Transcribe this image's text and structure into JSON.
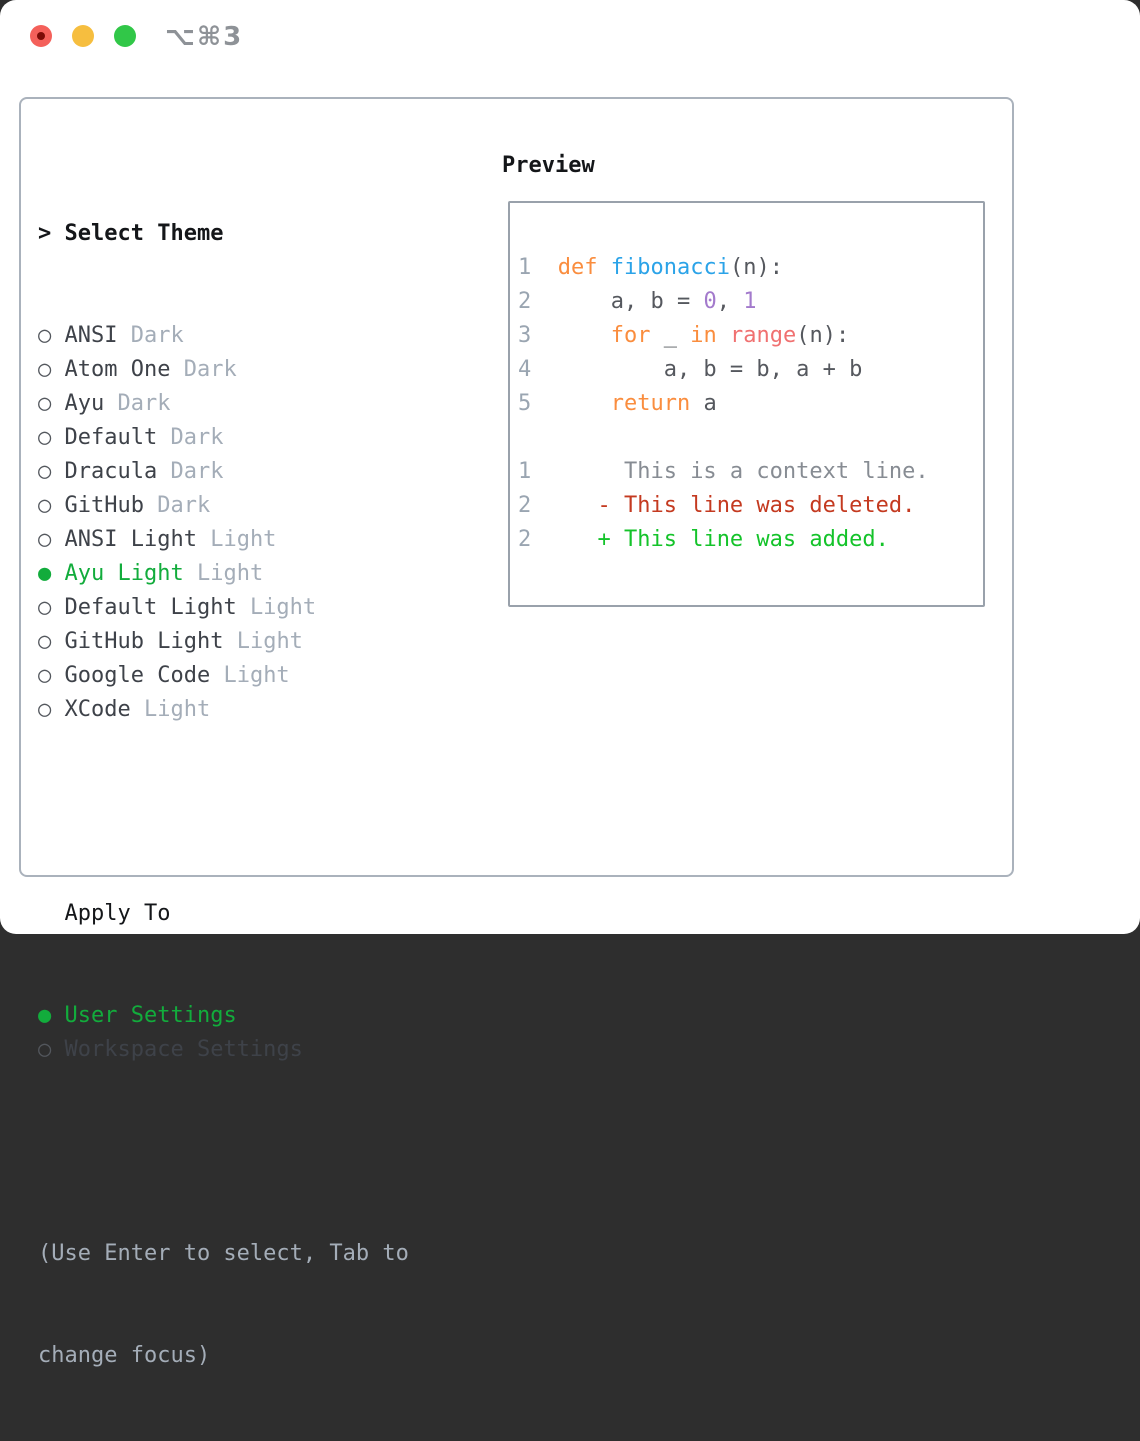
{
  "titlebar": {
    "title": "⌥⌘3"
  },
  "select_theme": {
    "prompt": ">",
    "title": "Select Theme"
  },
  "themes": [
    {
      "name": "ANSI",
      "variant": "Dark",
      "selected": false
    },
    {
      "name": "Atom One",
      "variant": "Dark",
      "selected": false
    },
    {
      "name": "Ayu",
      "variant": "Dark",
      "selected": false
    },
    {
      "name": "Default",
      "variant": "Dark",
      "selected": false
    },
    {
      "name": "Dracula",
      "variant": "Dark",
      "selected": false
    },
    {
      "name": "GitHub",
      "variant": "Dark",
      "selected": false
    },
    {
      "name": "ANSI Light",
      "variant": "Light",
      "selected": false
    },
    {
      "name": "Ayu Light",
      "variant": "Light",
      "selected": true
    },
    {
      "name": "Default Light",
      "variant": "Light",
      "selected": false
    },
    {
      "name": "GitHub Light",
      "variant": "Light",
      "selected": false
    },
    {
      "name": "Google Code",
      "variant": "Light",
      "selected": false
    },
    {
      "name": "XCode",
      "variant": "Light",
      "selected": false
    }
  ],
  "markers": {
    "selected": "●",
    "unselected": "○"
  },
  "apply_to": {
    "title": "Apply To",
    "options": [
      {
        "label": "User Settings",
        "selected": true
      },
      {
        "label": "Workspace Settings",
        "selected": false
      }
    ]
  },
  "help": {
    "line1": "(Use Enter to select, Tab to",
    "line2": "change focus)"
  },
  "preview": {
    "title": "Preview",
    "lines": [
      [
        {
          "t": "ln",
          "s": "1"
        },
        {
          "t": "pl",
          "s": "  "
        },
        {
          "t": "kw",
          "s": "def"
        },
        {
          "t": "pl",
          "s": " "
        },
        {
          "t": "fn",
          "s": "fibonacci"
        },
        {
          "t": "pl",
          "s": "(n):"
        }
      ],
      [
        {
          "t": "ln",
          "s": "2"
        },
        {
          "t": "pl",
          "s": "      a, b = "
        },
        {
          "t": "num",
          "s": "0"
        },
        {
          "t": "pl",
          "s": ", "
        },
        {
          "t": "num",
          "s": "1"
        }
      ],
      [
        {
          "t": "ln",
          "s": "3"
        },
        {
          "t": "pl",
          "s": "      "
        },
        {
          "t": "kw",
          "s": "for"
        },
        {
          "t": "pl",
          "s": " _ "
        },
        {
          "t": "kw",
          "s": "in"
        },
        {
          "t": "pl",
          "s": " "
        },
        {
          "t": "call",
          "s": "range"
        },
        {
          "t": "pl",
          "s": "(n):"
        }
      ],
      [
        {
          "t": "ln",
          "s": "4"
        },
        {
          "t": "pl",
          "s": "          a, b = b, a + b"
        }
      ],
      [
        {
          "t": "ln",
          "s": "5"
        },
        {
          "t": "pl",
          "s": "      "
        },
        {
          "t": "kw",
          "s": "return"
        },
        {
          "t": "pl",
          "s": " a"
        }
      ],
      [],
      [
        {
          "t": "ln",
          "s": "1"
        },
        {
          "t": "ctx",
          "s": "       This is a context line."
        }
      ],
      [
        {
          "t": "ln",
          "s": "2"
        },
        {
          "t": "pl",
          "s": "     "
        },
        {
          "t": "del",
          "s": "- This line was deleted."
        }
      ],
      [
        {
          "t": "ln",
          "s": "2"
        },
        {
          "t": "pl",
          "s": "     "
        },
        {
          "t": "add",
          "s": "+ This line was added."
        }
      ]
    ]
  },
  "colors": {
    "accent_green": "#12AC3C",
    "added_green": "#14C32A",
    "deleted_red": "#C43A20",
    "keyword_orange": "#FA8D3E",
    "function_blue": "#2BA3E8",
    "builtin_salmon": "#F07171",
    "number_purple": "#A37ACC",
    "code_text": "#55585E",
    "line_number": "#9AA5B1",
    "context_gray": "#878C93",
    "muted_gray": "#A4ADB8",
    "item_text": "#3E4249",
    "circle_gray": "#53575D",
    "heading_black": "#141619",
    "panel_border": "#AAB2BC",
    "preview_border": "#99A1AB",
    "titlebar_gray": "#8E9297",
    "light_red": "#F4605A",
    "light_yellow": "#F6BE3F",
    "light_green": "#31C748"
  }
}
